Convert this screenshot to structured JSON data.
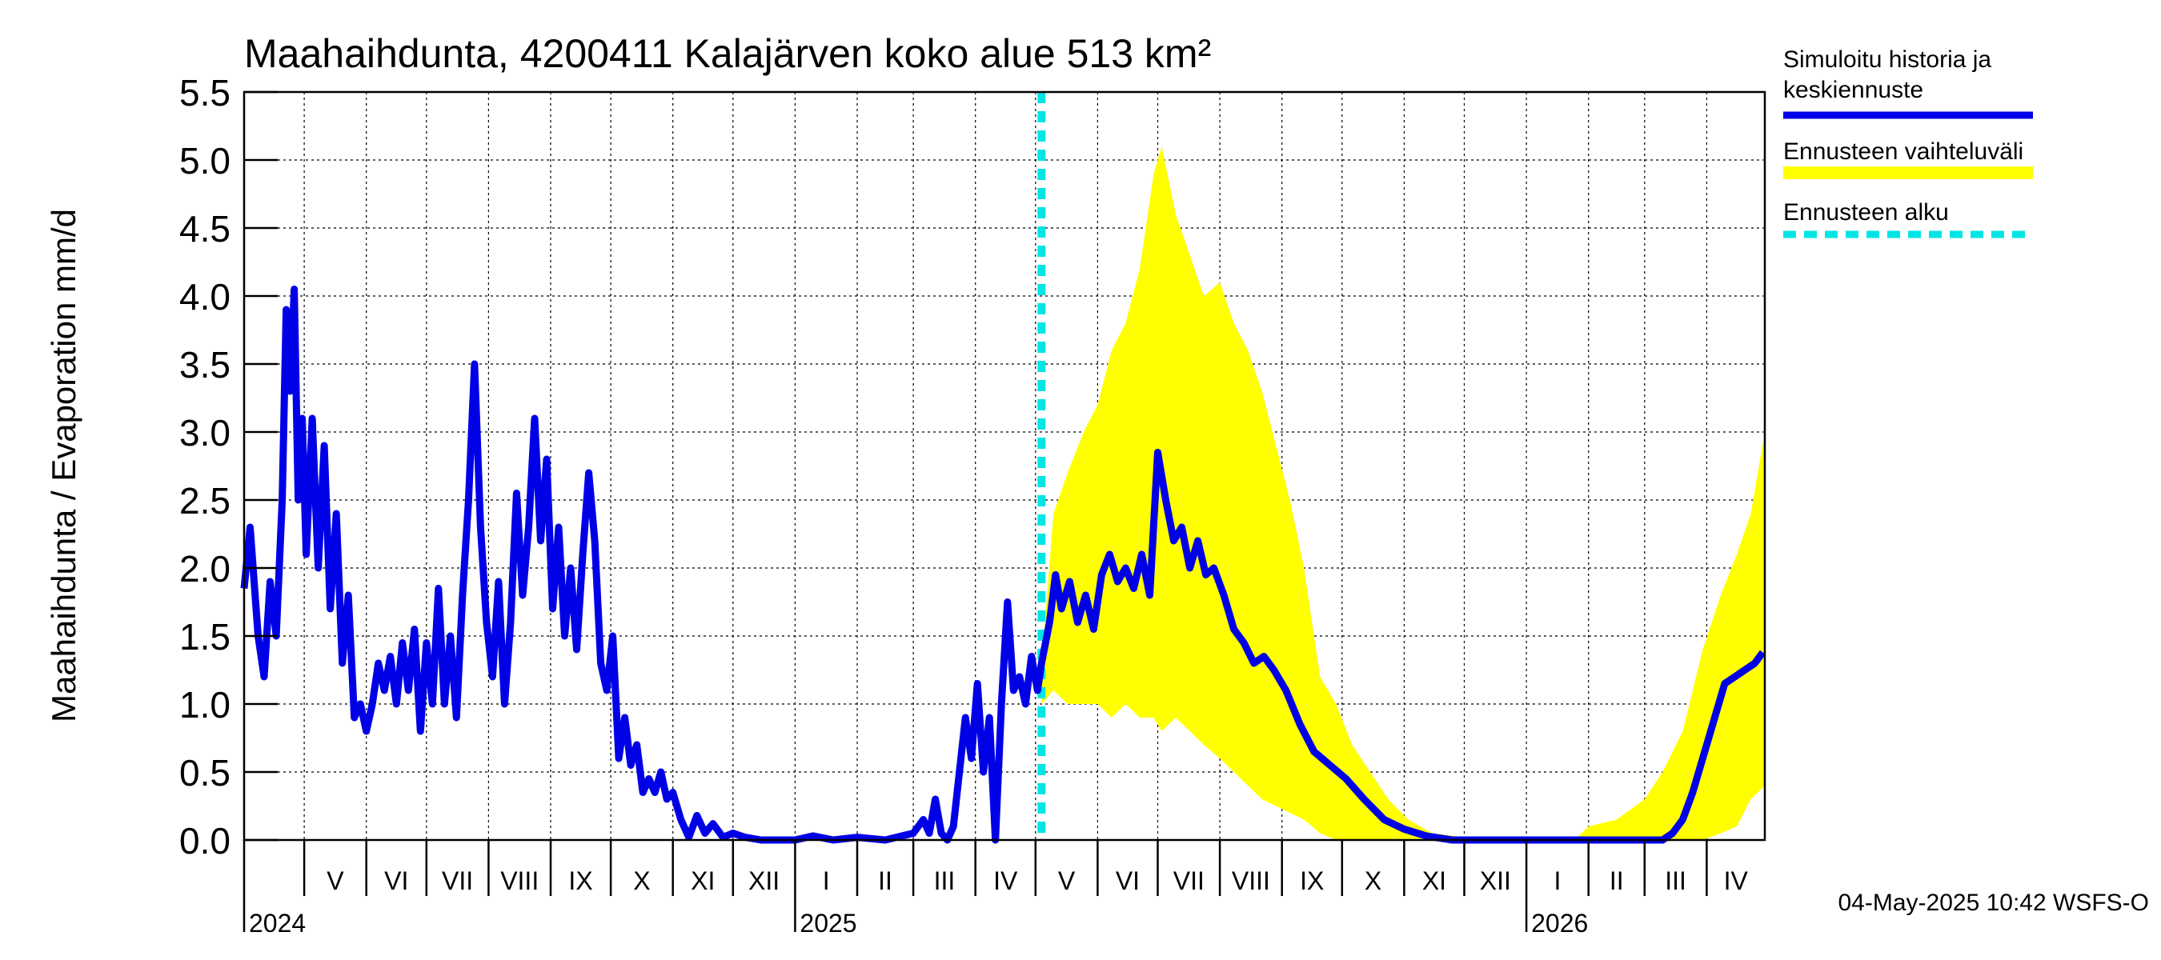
{
  "chart_data": {
    "type": "line",
    "title": "Maahaihdunta, 4200411 Kalajärven koko alue 513 km²",
    "ylabel": "Maahaihdunta / Evaporation   mm/d",
    "ylim": [
      0,
      5.5
    ],
    "yticks": [
      "0.0",
      "0.5",
      "1.0",
      "1.5",
      "2.0",
      "2.5",
      "3.0",
      "3.5",
      "4.0",
      "4.5",
      "5.0",
      "5.5"
    ],
    "xlim": [
      "2024-04-01",
      "2026-04-30"
    ],
    "x_month_labels": [
      {
        "label": "V",
        "date": "2024-05-01"
      },
      {
        "label": "VI",
        "date": "2024-06-01"
      },
      {
        "label": "VII",
        "date": "2024-07-01"
      },
      {
        "label": "VIII",
        "date": "2024-08-01"
      },
      {
        "label": "IX",
        "date": "2024-09-01"
      },
      {
        "label": "X",
        "date": "2024-10-01"
      },
      {
        "label": "XI",
        "date": "2024-11-01"
      },
      {
        "label": "XII",
        "date": "2024-12-01"
      },
      {
        "label": "I",
        "date": "2025-01-01"
      },
      {
        "label": "II",
        "date": "2025-02-01"
      },
      {
        "label": "III",
        "date": "2025-03-01"
      },
      {
        "label": "IV",
        "date": "2025-04-01"
      },
      {
        "label": "V",
        "date": "2025-05-01"
      },
      {
        "label": "VI",
        "date": "2025-06-01"
      },
      {
        "label": "VII",
        "date": "2025-07-01"
      },
      {
        "label": "VIII",
        "date": "2025-08-01"
      },
      {
        "label": "IX",
        "date": "2025-09-01"
      },
      {
        "label": "X",
        "date": "2025-10-01"
      },
      {
        "label": "XI",
        "date": "2025-11-01"
      },
      {
        "label": "XII",
        "date": "2025-12-01"
      },
      {
        "label": "I",
        "date": "2026-01-01"
      },
      {
        "label": "II",
        "date": "2026-02-01"
      },
      {
        "label": "III",
        "date": "2026-03-01"
      },
      {
        "label": "IV",
        "date": "2026-04-01"
      }
    ],
    "year_labels": [
      {
        "label": "2024",
        "date": "2024-04-01"
      },
      {
        "label": "2025",
        "date": "2025-01-01"
      },
      {
        "label": "2026",
        "date": "2026-01-01"
      }
    ],
    "forecast_start": "2025-05-04",
    "legend": [
      {
        "name": "Simuloitu historia ja keskiennuste",
        "color": "#0000e6",
        "style": "line"
      },
      {
        "name": "Ennusteen vaihteluväli",
        "color": "#ffff00",
        "style": "band"
      },
      {
        "name": "Ennusteen alku",
        "color": "#00e5e5",
        "style": "dashed"
      }
    ],
    "legend_position": "right",
    "grid": true,
    "series": [
      {
        "name": "Simuloitu historia ja keskiennuste",
        "color": "#0000e6",
        "points": [
          [
            "2024-04-01",
            1.85
          ],
          [
            "2024-04-04",
            2.3
          ],
          [
            "2024-04-08",
            1.5
          ],
          [
            "2024-04-11",
            1.2
          ],
          [
            "2024-04-14",
            1.9
          ],
          [
            "2024-04-17",
            1.5
          ],
          [
            "2024-04-20",
            2.5
          ],
          [
            "2024-04-22",
            3.9
          ],
          [
            "2024-04-24",
            3.3
          ],
          [
            "2024-04-26",
            4.05
          ],
          [
            "2024-04-28",
            2.5
          ],
          [
            "2024-04-30",
            3.1
          ],
          [
            "2024-05-02",
            2.1
          ],
          [
            "2024-05-05",
            3.1
          ],
          [
            "2024-05-08",
            2.0
          ],
          [
            "2024-05-11",
            2.9
          ],
          [
            "2024-05-14",
            1.7
          ],
          [
            "2024-05-17",
            2.4
          ],
          [
            "2024-05-20",
            1.3
          ],
          [
            "2024-05-23",
            1.8
          ],
          [
            "2024-05-26",
            0.9
          ],
          [
            "2024-05-29",
            1.0
          ],
          [
            "2024-06-01",
            0.8
          ],
          [
            "2024-06-04",
            1.0
          ],
          [
            "2024-06-07",
            1.3
          ],
          [
            "2024-06-10",
            1.1
          ],
          [
            "2024-06-13",
            1.35
          ],
          [
            "2024-06-16",
            1.0
          ],
          [
            "2024-06-19",
            1.45
          ],
          [
            "2024-06-22",
            1.1
          ],
          [
            "2024-06-25",
            1.55
          ],
          [
            "2024-06-28",
            0.8
          ],
          [
            "2024-07-01",
            1.45
          ],
          [
            "2024-07-04",
            1.0
          ],
          [
            "2024-07-07",
            1.85
          ],
          [
            "2024-07-10",
            1.0
          ],
          [
            "2024-07-13",
            1.5
          ],
          [
            "2024-07-16",
            0.9
          ],
          [
            "2024-07-19",
            1.8
          ],
          [
            "2024-07-22",
            2.5
          ],
          [
            "2024-07-25",
            3.5
          ],
          [
            "2024-07-28",
            2.3
          ],
          [
            "2024-07-31",
            1.6
          ],
          [
            "2024-08-03",
            1.2
          ],
          [
            "2024-08-06",
            1.9
          ],
          [
            "2024-08-09",
            1.0
          ],
          [
            "2024-08-12",
            1.6
          ],
          [
            "2024-08-15",
            2.55
          ],
          [
            "2024-08-18",
            1.8
          ],
          [
            "2024-08-21",
            2.3
          ],
          [
            "2024-08-24",
            3.1
          ],
          [
            "2024-08-27",
            2.2
          ],
          [
            "2024-08-30",
            2.8
          ],
          [
            "2024-09-02",
            1.7
          ],
          [
            "2024-09-05",
            2.3
          ],
          [
            "2024-09-08",
            1.5
          ],
          [
            "2024-09-11",
            2.0
          ],
          [
            "2024-09-14",
            1.4
          ],
          [
            "2024-09-17",
            2.1
          ],
          [
            "2024-09-20",
            2.7
          ],
          [
            "2024-09-23",
            2.2
          ],
          [
            "2024-09-26",
            1.3
          ],
          [
            "2024-09-29",
            1.1
          ],
          [
            "2024-10-02",
            1.5
          ],
          [
            "2024-10-05",
            0.6
          ],
          [
            "2024-10-08",
            0.9
          ],
          [
            "2024-10-11",
            0.55
          ],
          [
            "2024-10-14",
            0.7
          ],
          [
            "2024-10-17",
            0.35
          ],
          [
            "2024-10-20",
            0.45
          ],
          [
            "2024-10-23",
            0.35
          ],
          [
            "2024-10-26",
            0.5
          ],
          [
            "2024-10-29",
            0.3
          ],
          [
            "2024-11-01",
            0.35
          ],
          [
            "2024-11-05",
            0.15
          ],
          [
            "2024-11-09",
            0.02
          ],
          [
            "2024-11-13",
            0.18
          ],
          [
            "2024-11-17",
            0.05
          ],
          [
            "2024-11-21",
            0.12
          ],
          [
            "2024-11-26",
            0.02
          ],
          [
            "2024-12-01",
            0.05
          ],
          [
            "2024-12-07",
            0.02
          ],
          [
            "2024-12-15",
            0.0
          ],
          [
            "2025-01-01",
            0.0
          ],
          [
            "2025-01-10",
            0.03
          ],
          [
            "2025-01-20",
            0.0
          ],
          [
            "2025-02-01",
            0.02
          ],
          [
            "2025-02-15",
            0.0
          ],
          [
            "2025-03-01",
            0.05
          ],
          [
            "2025-03-06",
            0.15
          ],
          [
            "2025-03-09",
            0.05
          ],
          [
            "2025-03-12",
            0.3
          ],
          [
            "2025-03-15",
            0.05
          ],
          [
            "2025-03-18",
            0.0
          ],
          [
            "2025-03-21",
            0.1
          ],
          [
            "2025-03-24",
            0.5
          ],
          [
            "2025-03-27",
            0.9
          ],
          [
            "2025-03-30",
            0.6
          ],
          [
            "2025-04-02",
            1.15
          ],
          [
            "2025-04-05",
            0.5
          ],
          [
            "2025-04-08",
            0.9
          ],
          [
            "2025-04-11",
            0.0
          ],
          [
            "2025-04-14",
            1.0
          ],
          [
            "2025-04-17",
            1.75
          ],
          [
            "2025-04-20",
            1.1
          ],
          [
            "2025-04-23",
            1.2
          ],
          [
            "2025-04-26",
            1.0
          ],
          [
            "2025-04-29",
            1.35
          ],
          [
            "2025-05-02",
            1.1
          ],
          [
            "2025-05-04",
            1.3
          ],
          [
            "2025-05-08",
            1.6
          ],
          [
            "2025-05-11",
            1.95
          ],
          [
            "2025-05-14",
            1.7
          ],
          [
            "2025-05-18",
            1.9
          ],
          [
            "2025-05-22",
            1.6
          ],
          [
            "2025-05-26",
            1.8
          ],
          [
            "2025-05-30",
            1.55
          ],
          [
            "2025-06-03",
            1.95
          ],
          [
            "2025-06-07",
            2.1
          ],
          [
            "2025-06-11",
            1.9
          ],
          [
            "2025-06-15",
            2.0
          ],
          [
            "2025-06-19",
            1.85
          ],
          [
            "2025-06-23",
            2.1
          ],
          [
            "2025-06-27",
            1.8
          ],
          [
            "2025-07-01",
            2.85
          ],
          [
            "2025-07-05",
            2.5
          ],
          [
            "2025-07-09",
            2.2
          ],
          [
            "2025-07-13",
            2.3
          ],
          [
            "2025-07-17",
            2.0
          ],
          [
            "2025-07-21",
            2.2
          ],
          [
            "2025-07-25",
            1.95
          ],
          [
            "2025-07-29",
            2.0
          ],
          [
            "2025-08-03",
            1.8
          ],
          [
            "2025-08-08",
            1.55
          ],
          [
            "2025-08-13",
            1.45
          ],
          [
            "2025-08-18",
            1.3
          ],
          [
            "2025-08-23",
            1.35
          ],
          [
            "2025-08-28",
            1.25
          ],
          [
            "2025-09-03",
            1.1
          ],
          [
            "2025-09-10",
            0.85
          ],
          [
            "2025-09-17",
            0.65
          ],
          [
            "2025-09-25",
            0.55
          ],
          [
            "2025-10-03",
            0.45
          ],
          [
            "2025-10-12",
            0.3
          ],
          [
            "2025-10-22",
            0.15
          ],
          [
            "2025-11-01",
            0.08
          ],
          [
            "2025-11-12",
            0.03
          ],
          [
            "2025-11-25",
            0.0
          ],
          [
            "2026-01-01",
            0.0
          ],
          [
            "2026-02-15",
            0.0
          ],
          [
            "2026-03-10",
            0.0
          ],
          [
            "2026-03-15",
            0.05
          ],
          [
            "2026-03-20",
            0.15
          ],
          [
            "2026-03-25",
            0.35
          ],
          [
            "2026-03-30",
            0.6
          ],
          [
            "2026-04-05",
            0.9
          ],
          [
            "2026-04-10",
            1.15
          ],
          [
            "2026-04-15",
            1.2
          ],
          [
            "2026-04-20",
            1.25
          ],
          [
            "2026-04-25",
            1.3
          ],
          [
            "2026-04-29",
            1.38
          ]
        ]
      }
    ],
    "band": {
      "name": "Ennusteen vaihteluväli",
      "color": "#ffff00",
      "points": [
        [
          "2025-05-04",
          1.0,
          1.3
        ],
        [
          "2025-05-10",
          1.1,
          2.4
        ],
        [
          "2025-05-17",
          1.0,
          2.7
        ],
        [
          "2025-05-25",
          1.0,
          3.0
        ],
        [
          "2025-06-01",
          1.0,
          3.2
        ],
        [
          "2025-06-08",
          0.9,
          3.6
        ],
        [
          "2025-06-15",
          1.0,
          3.8
        ],
        [
          "2025-06-22",
          0.9,
          4.2
        ],
        [
          "2025-06-29",
          0.9,
          4.9
        ],
        [
          "2025-07-03",
          0.8,
          5.1
        ],
        [
          "2025-07-10",
          0.9,
          4.6
        ],
        [
          "2025-07-17",
          0.8,
          4.3
        ],
        [
          "2025-07-24",
          0.7,
          4.0
        ],
        [
          "2025-08-01",
          0.6,
          4.1
        ],
        [
          "2025-08-08",
          0.5,
          3.8
        ],
        [
          "2025-08-15",
          0.4,
          3.6
        ],
        [
          "2025-08-22",
          0.3,
          3.3
        ],
        [
          "2025-08-29",
          0.25,
          2.9
        ],
        [
          "2025-09-05",
          0.2,
          2.5
        ],
        [
          "2025-09-12",
          0.15,
          2.0
        ],
        [
          "2025-09-20",
          0.05,
          1.2
        ],
        [
          "2025-09-28",
          0.0,
          1.0
        ],
        [
          "2025-10-06",
          0.0,
          0.7
        ],
        [
          "2025-10-15",
          0.0,
          0.5
        ],
        [
          "2025-10-24",
          0.0,
          0.3
        ],
        [
          "2025-11-03",
          0.0,
          0.15
        ],
        [
          "2025-11-15",
          0.0,
          0.05
        ],
        [
          "2025-12-01",
          0.0,
          0.02
        ],
        [
          "2026-01-25",
          0.0,
          0.0
        ],
        [
          "2026-02-01",
          0.0,
          0.1
        ],
        [
          "2026-02-15",
          0.0,
          0.15
        ],
        [
          "2026-03-01",
          0.0,
          0.3
        ],
        [
          "2026-03-10",
          0.0,
          0.5
        ],
        [
          "2026-03-20",
          0.0,
          0.8
        ],
        [
          "2026-03-30",
          0.0,
          1.4
        ],
        [
          "2026-04-08",
          0.05,
          1.8
        ],
        [
          "2026-04-16",
          0.1,
          2.1
        ],
        [
          "2026-04-23",
          0.3,
          2.4
        ],
        [
          "2026-04-30",
          0.4,
          3.0
        ]
      ]
    },
    "footer": "04-May-2025 10:42 WSFS-O"
  }
}
